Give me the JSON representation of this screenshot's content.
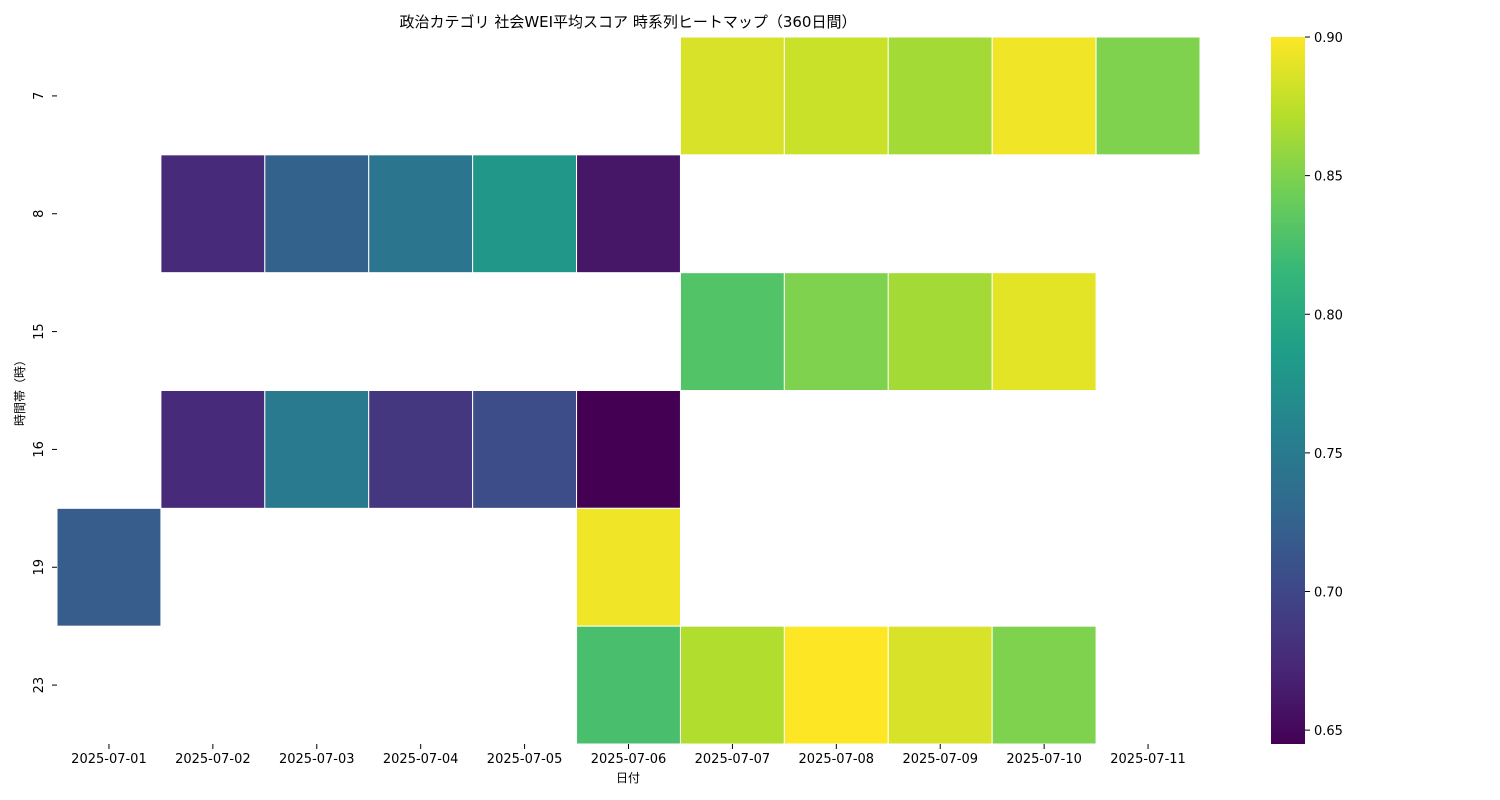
{
  "chart_data": {
    "type": "heatmap",
    "title": "政治カテゴリ 社会WEI平均スコア 時系列ヒートマップ（360日間）",
    "xlabel": "日付",
    "ylabel": "時間帯（時）",
    "x": [
      "2025-07-01",
      "2025-07-02",
      "2025-07-03",
      "2025-07-04",
      "2025-07-05",
      "2025-07-06",
      "2025-07-07",
      "2025-07-08",
      "2025-07-09",
      "2025-07-10",
      "2025-07-11"
    ],
    "y": [
      "7",
      "8",
      "15",
      "16",
      "19",
      "23"
    ],
    "values": [
      [
        null,
        null,
        null,
        null,
        null,
        null,
        0.885,
        0.88,
        0.865,
        0.895,
        0.85
      ],
      [
        null,
        0.675,
        0.725,
        0.745,
        0.78,
        0.66,
        null,
        null,
        null,
        null,
        null
      ],
      [
        null,
        null,
        null,
        null,
        null,
        null,
        0.83,
        0.85,
        0.865,
        0.89,
        null
      ],
      [
        null,
        0.675,
        0.75,
        0.685,
        0.705,
        0.645,
        null,
        null,
        null,
        null,
        null
      ],
      [
        0.72,
        null,
        null,
        null,
        null,
        0.895,
        null,
        null,
        null,
        null,
        null
      ],
      [
        null,
        null,
        null,
        null,
        null,
        0.825,
        0.87,
        0.9,
        0.885,
        0.85,
        null
      ]
    ],
    "colorbar": {
      "min": 0.645,
      "max": 0.9,
      "ticks": [
        "0.65",
        "0.70",
        "0.75",
        "0.80",
        "0.85",
        "0.90"
      ],
      "colormap": "viridis"
    }
  }
}
